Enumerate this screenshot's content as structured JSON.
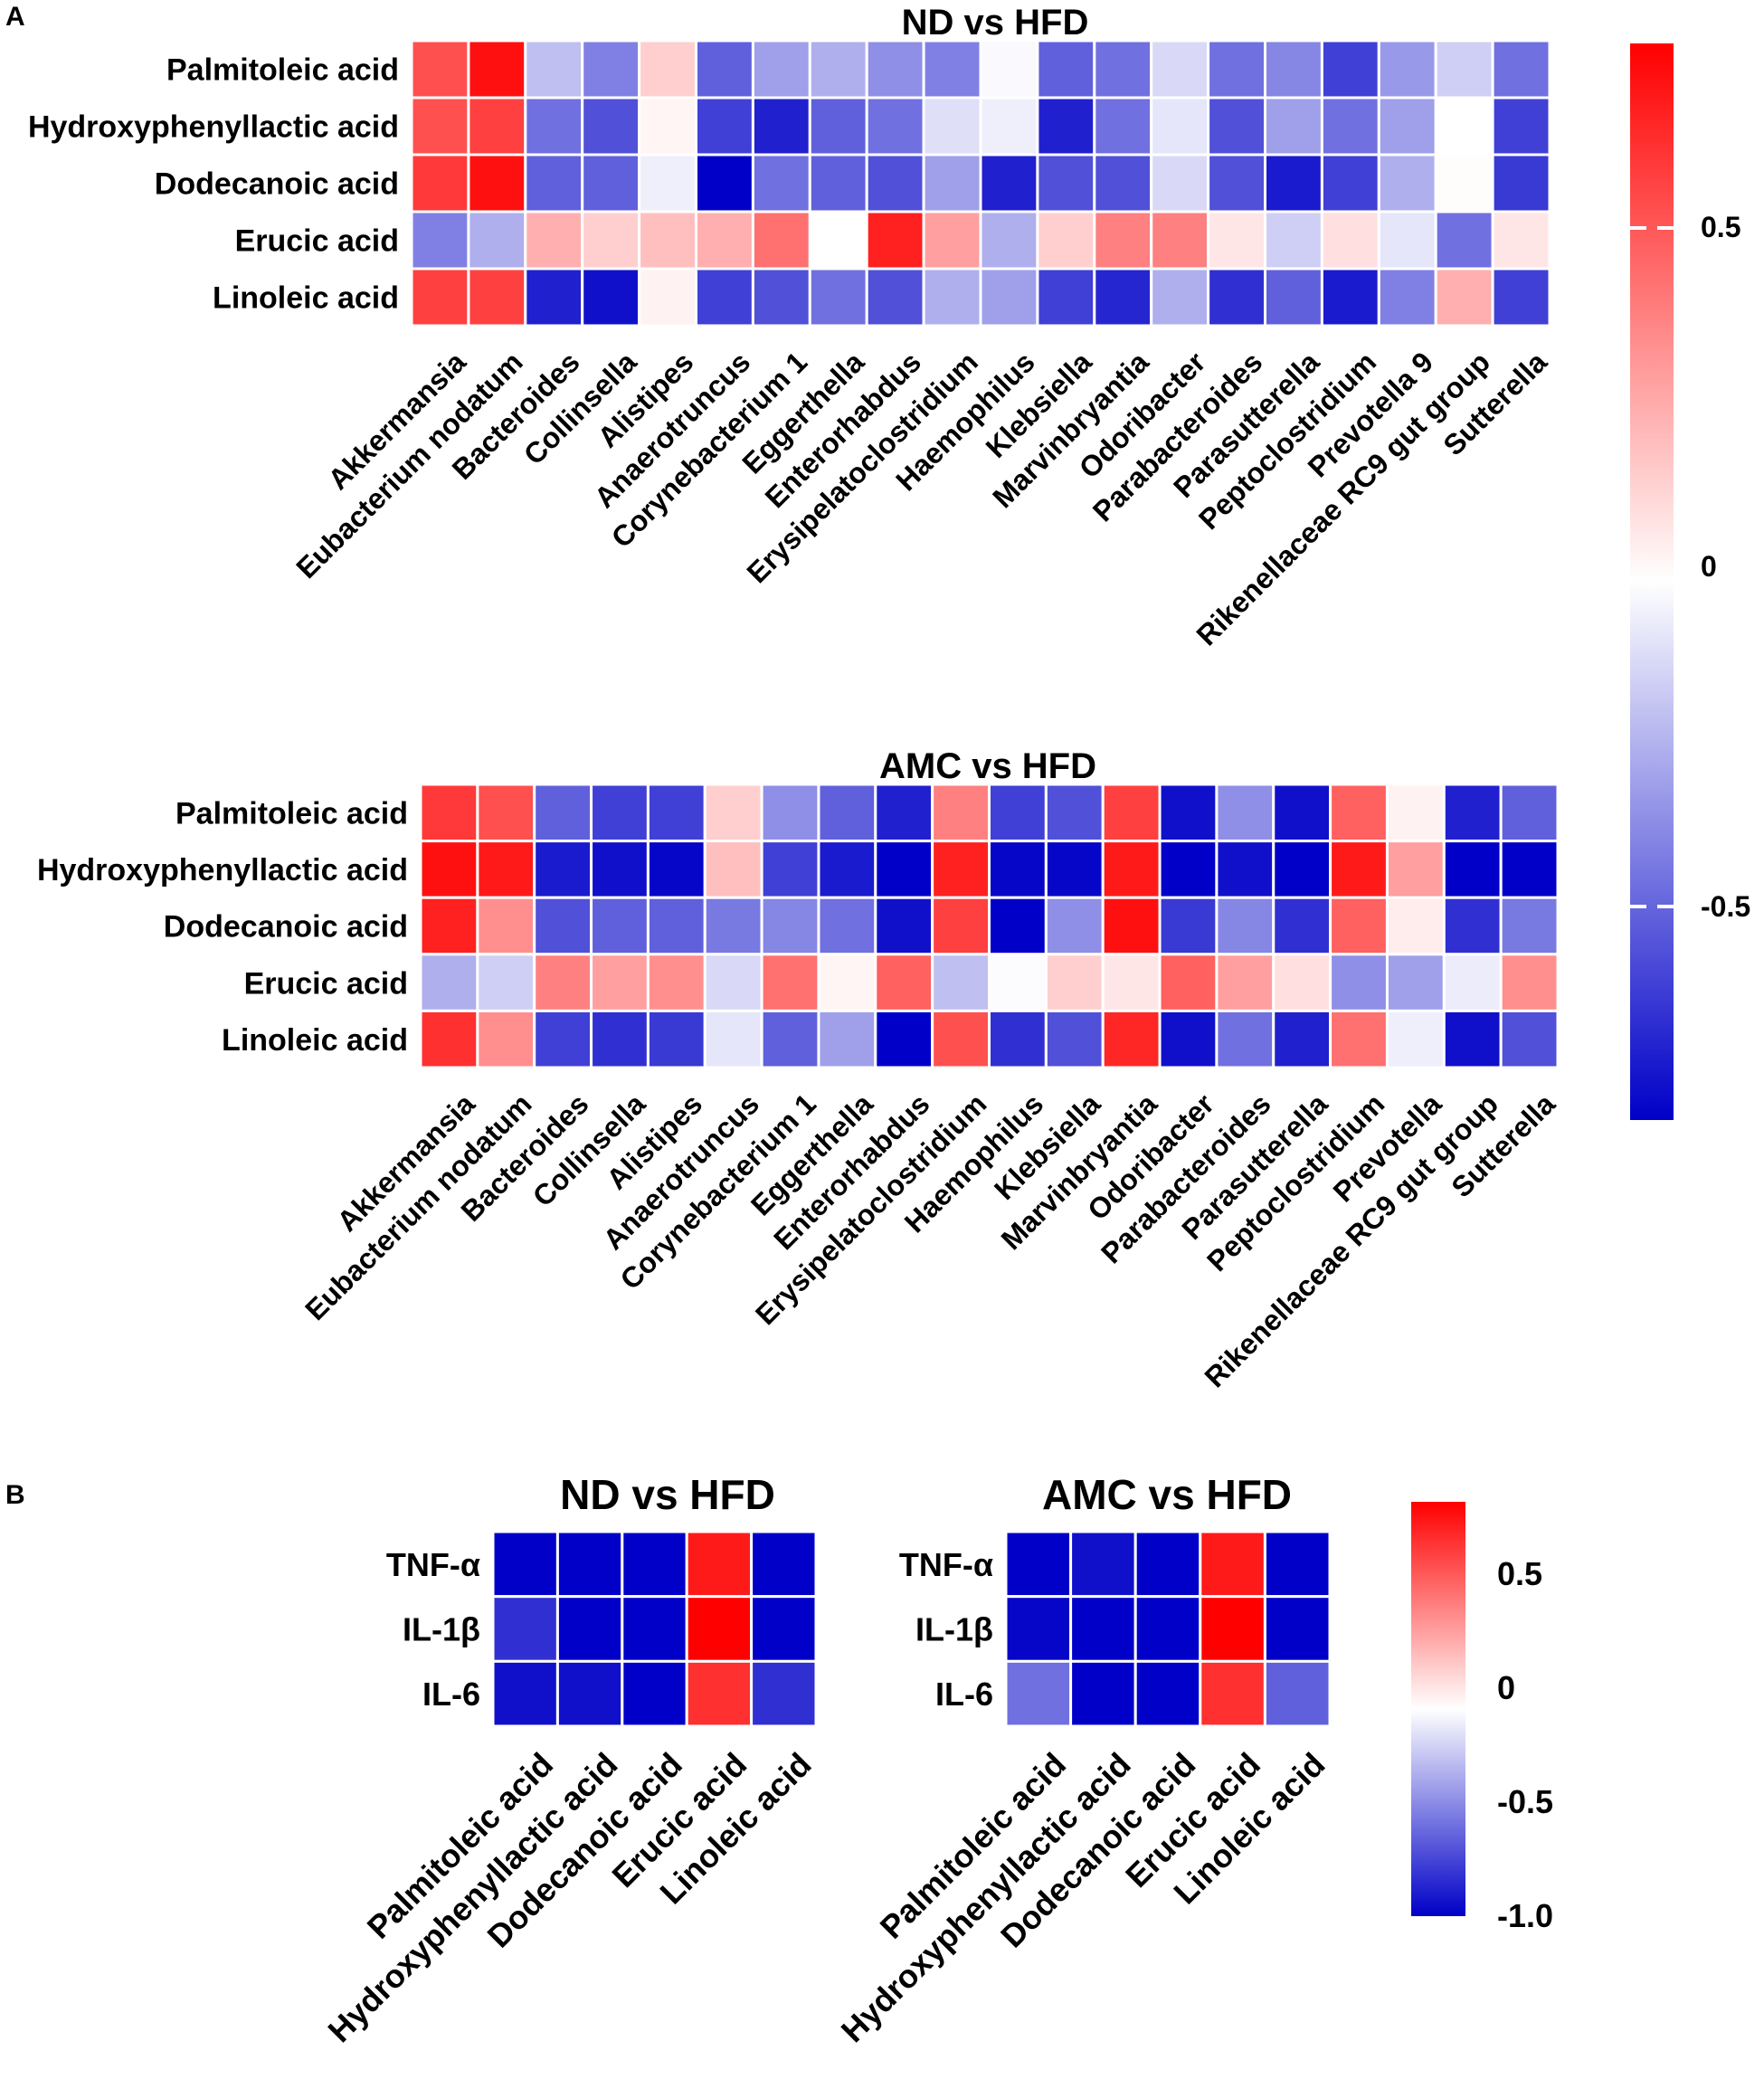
{
  "panels": {
    "a_label": "A",
    "b_label": "B"
  },
  "colors": {
    "positive_max": "#ff0000",
    "zero": "#ffffff",
    "negative_max": "#0000c8"
  },
  "chart_data": [
    {
      "type": "heatmap",
      "title": "ND vs HFD",
      "panel": "A",
      "rows": [
        "Palmitoleic acid",
        "Hydroxyphenyllactic acid",
        "Dodecanoic acid",
        "Erucic acid",
        "Linoleic acid"
      ],
      "columns": [
        "Akkermansia",
        "Eubacterium nodatum",
        "Bacteroides",
        "Collinsella",
        "Alistipes",
        "Anaerotruncus",
        "Corynebacterium 1",
        "Eggerthella",
        "Enterorhabdus",
        "Erysipelatoclostridium",
        "Haemophilus",
        "Klebsiella",
        "Marvinbryantia",
        "Odoribacter",
        "Parabacteroides",
        "Parasutterella",
        "Peptoclostridium",
        "Prevotella 9",
        "Rikenellaceae RC9 gut group",
        "Sutterella"
      ],
      "values": [
        [
          0.55,
          0.75,
          -0.2,
          -0.4,
          0.15,
          -0.5,
          -0.3,
          -0.25,
          -0.35,
          -0.4,
          -0.02,
          -0.5,
          -0.45,
          -0.12,
          -0.45,
          -0.38,
          -0.6,
          -0.32,
          -0.15,
          -0.45
        ],
        [
          0.55,
          0.6,
          -0.45,
          -0.55,
          0.03,
          -0.6,
          -0.7,
          -0.5,
          -0.45,
          -0.1,
          -0.05,
          -0.7,
          -0.45,
          -0.08,
          -0.55,
          -0.3,
          -0.45,
          -0.3,
          0.0,
          -0.6
        ],
        [
          0.62,
          0.75,
          -0.5,
          -0.5,
          -0.05,
          -0.85,
          -0.45,
          -0.5,
          -0.55,
          -0.3,
          -0.7,
          -0.55,
          -0.55,
          -0.12,
          -0.55,
          -0.72,
          -0.6,
          -0.25,
          0.01,
          -0.62
        ],
        [
          -0.4,
          -0.25,
          0.25,
          0.15,
          0.2,
          0.25,
          0.45,
          0.0,
          0.7,
          0.3,
          -0.25,
          0.15,
          0.4,
          0.4,
          0.08,
          -0.15,
          0.1,
          -0.08,
          -0.45,
          0.08
        ],
        [
          0.6,
          0.6,
          -0.7,
          -0.75,
          0.04,
          -0.6,
          -0.55,
          -0.45,
          -0.55,
          -0.25,
          -0.3,
          -0.6,
          -0.68,
          -0.25,
          -0.65,
          -0.5,
          -0.72,
          -0.4,
          0.25,
          -0.6
        ]
      ],
      "colorbar": {
        "min": -0.8,
        "max": 0.8,
        "ticks": [
          "0.5",
          "0",
          "-0.5"
        ]
      }
    },
    {
      "type": "heatmap",
      "title": "AMC vs HFD",
      "panel": "A",
      "rows": [
        "Palmitoleic acid",
        "Hydroxyphenyllactic acid",
        "Dodecanoic acid",
        "Erucic acid",
        "Linoleic acid"
      ],
      "columns": [
        "Akkermansia",
        "Eubacterium nodatum",
        "Bacteroides",
        "Collinsella",
        "Alistipes",
        "Anaerotruncus",
        "Corynebacterium 1",
        "Eggerthella",
        "Enterorhabdus",
        "Erysipelatoclostridium",
        "Haemophilus",
        "Klebsiella",
        "Marvinbryantia",
        "Odoribacter",
        "Parabacteroides",
        "Parasutterella",
        "Peptoclostridium",
        "Prevotella",
        "Rikenellaceae RC9 gut group",
        "Sutterella"
      ],
      "values": [
        [
          0.62,
          0.55,
          -0.5,
          -0.6,
          -0.6,
          0.15,
          -0.35,
          -0.5,
          -0.7,
          0.4,
          -0.6,
          -0.55,
          0.6,
          -0.75,
          -0.35,
          -0.75,
          0.5,
          0.04,
          -0.7,
          -0.5
        ],
        [
          0.75,
          0.72,
          -0.72,
          -0.75,
          -0.78,
          0.2,
          -0.6,
          -0.72,
          -0.85,
          0.7,
          -0.78,
          -0.78,
          0.72,
          -0.85,
          -0.75,
          -0.85,
          0.72,
          0.3,
          -0.82,
          -0.8
        ],
        [
          0.7,
          0.35,
          -0.55,
          -0.5,
          -0.5,
          -0.42,
          -0.38,
          -0.45,
          -0.75,
          0.6,
          -0.85,
          -0.35,
          0.75,
          -0.62,
          -0.38,
          -0.65,
          0.5,
          0.06,
          -0.65,
          -0.42
        ],
        [
          -0.25,
          -0.15,
          0.4,
          0.3,
          0.35,
          -0.12,
          0.45,
          0.03,
          0.5,
          -0.2,
          -0.01,
          0.15,
          0.08,
          0.5,
          0.3,
          0.1,
          -0.35,
          -0.3,
          -0.06,
          0.35
        ],
        [
          0.65,
          0.35,
          -0.6,
          -0.65,
          -0.62,
          -0.08,
          -0.5,
          -0.3,
          -0.85,
          0.55,
          -0.65,
          -0.55,
          0.68,
          -0.75,
          -0.45,
          -0.7,
          0.45,
          -0.05,
          -0.75,
          -0.55
        ]
      ],
      "colorbar": {
        "min": -0.8,
        "max": 0.8,
        "ticks": [
          "0.5",
          "0",
          "-0.5"
        ]
      }
    },
    {
      "type": "heatmap",
      "title": "ND vs HFD",
      "panel": "B",
      "rows": [
        "TNF-α",
        "IL-1β",
        "IL-6"
      ],
      "columns": [
        "Palmitoleic acid",
        "Hydroxyphenyllactic acid",
        "Dodecanoic acid",
        "Erucic acid",
        "Linoleic acid"
      ],
      "values": [
        [
          -0.9,
          -0.85,
          -0.8,
          0.72,
          -0.8
        ],
        [
          -0.65,
          -0.95,
          -0.8,
          0.8,
          -0.85
        ],
        [
          -0.75,
          -0.75,
          -0.85,
          0.65,
          -0.65
        ]
      ]
    },
    {
      "type": "heatmap",
      "title": "AMC vs HFD",
      "panel": "B",
      "rows": [
        "TNF-α",
        "IL-1β",
        "IL-6"
      ],
      "columns": [
        "Palmitoleic acid",
        "Hydroxyphenyllactic acid",
        "Dodecanoic acid",
        "Erucic acid",
        "Linoleic acid"
      ],
      "values": [
        [
          -0.92,
          -0.75,
          -0.92,
          0.72,
          -0.92
        ],
        [
          -0.78,
          -0.95,
          -0.95,
          0.8,
          -0.8
        ],
        [
          -0.45,
          -0.95,
          -0.82,
          0.65,
          -0.5
        ]
      ],
      "colorbar": {
        "min": -1.0,
        "max": 0.8,
        "ticks": [
          "0.5",
          "0",
          "-0.5",
          "-1.0"
        ]
      }
    }
  ]
}
